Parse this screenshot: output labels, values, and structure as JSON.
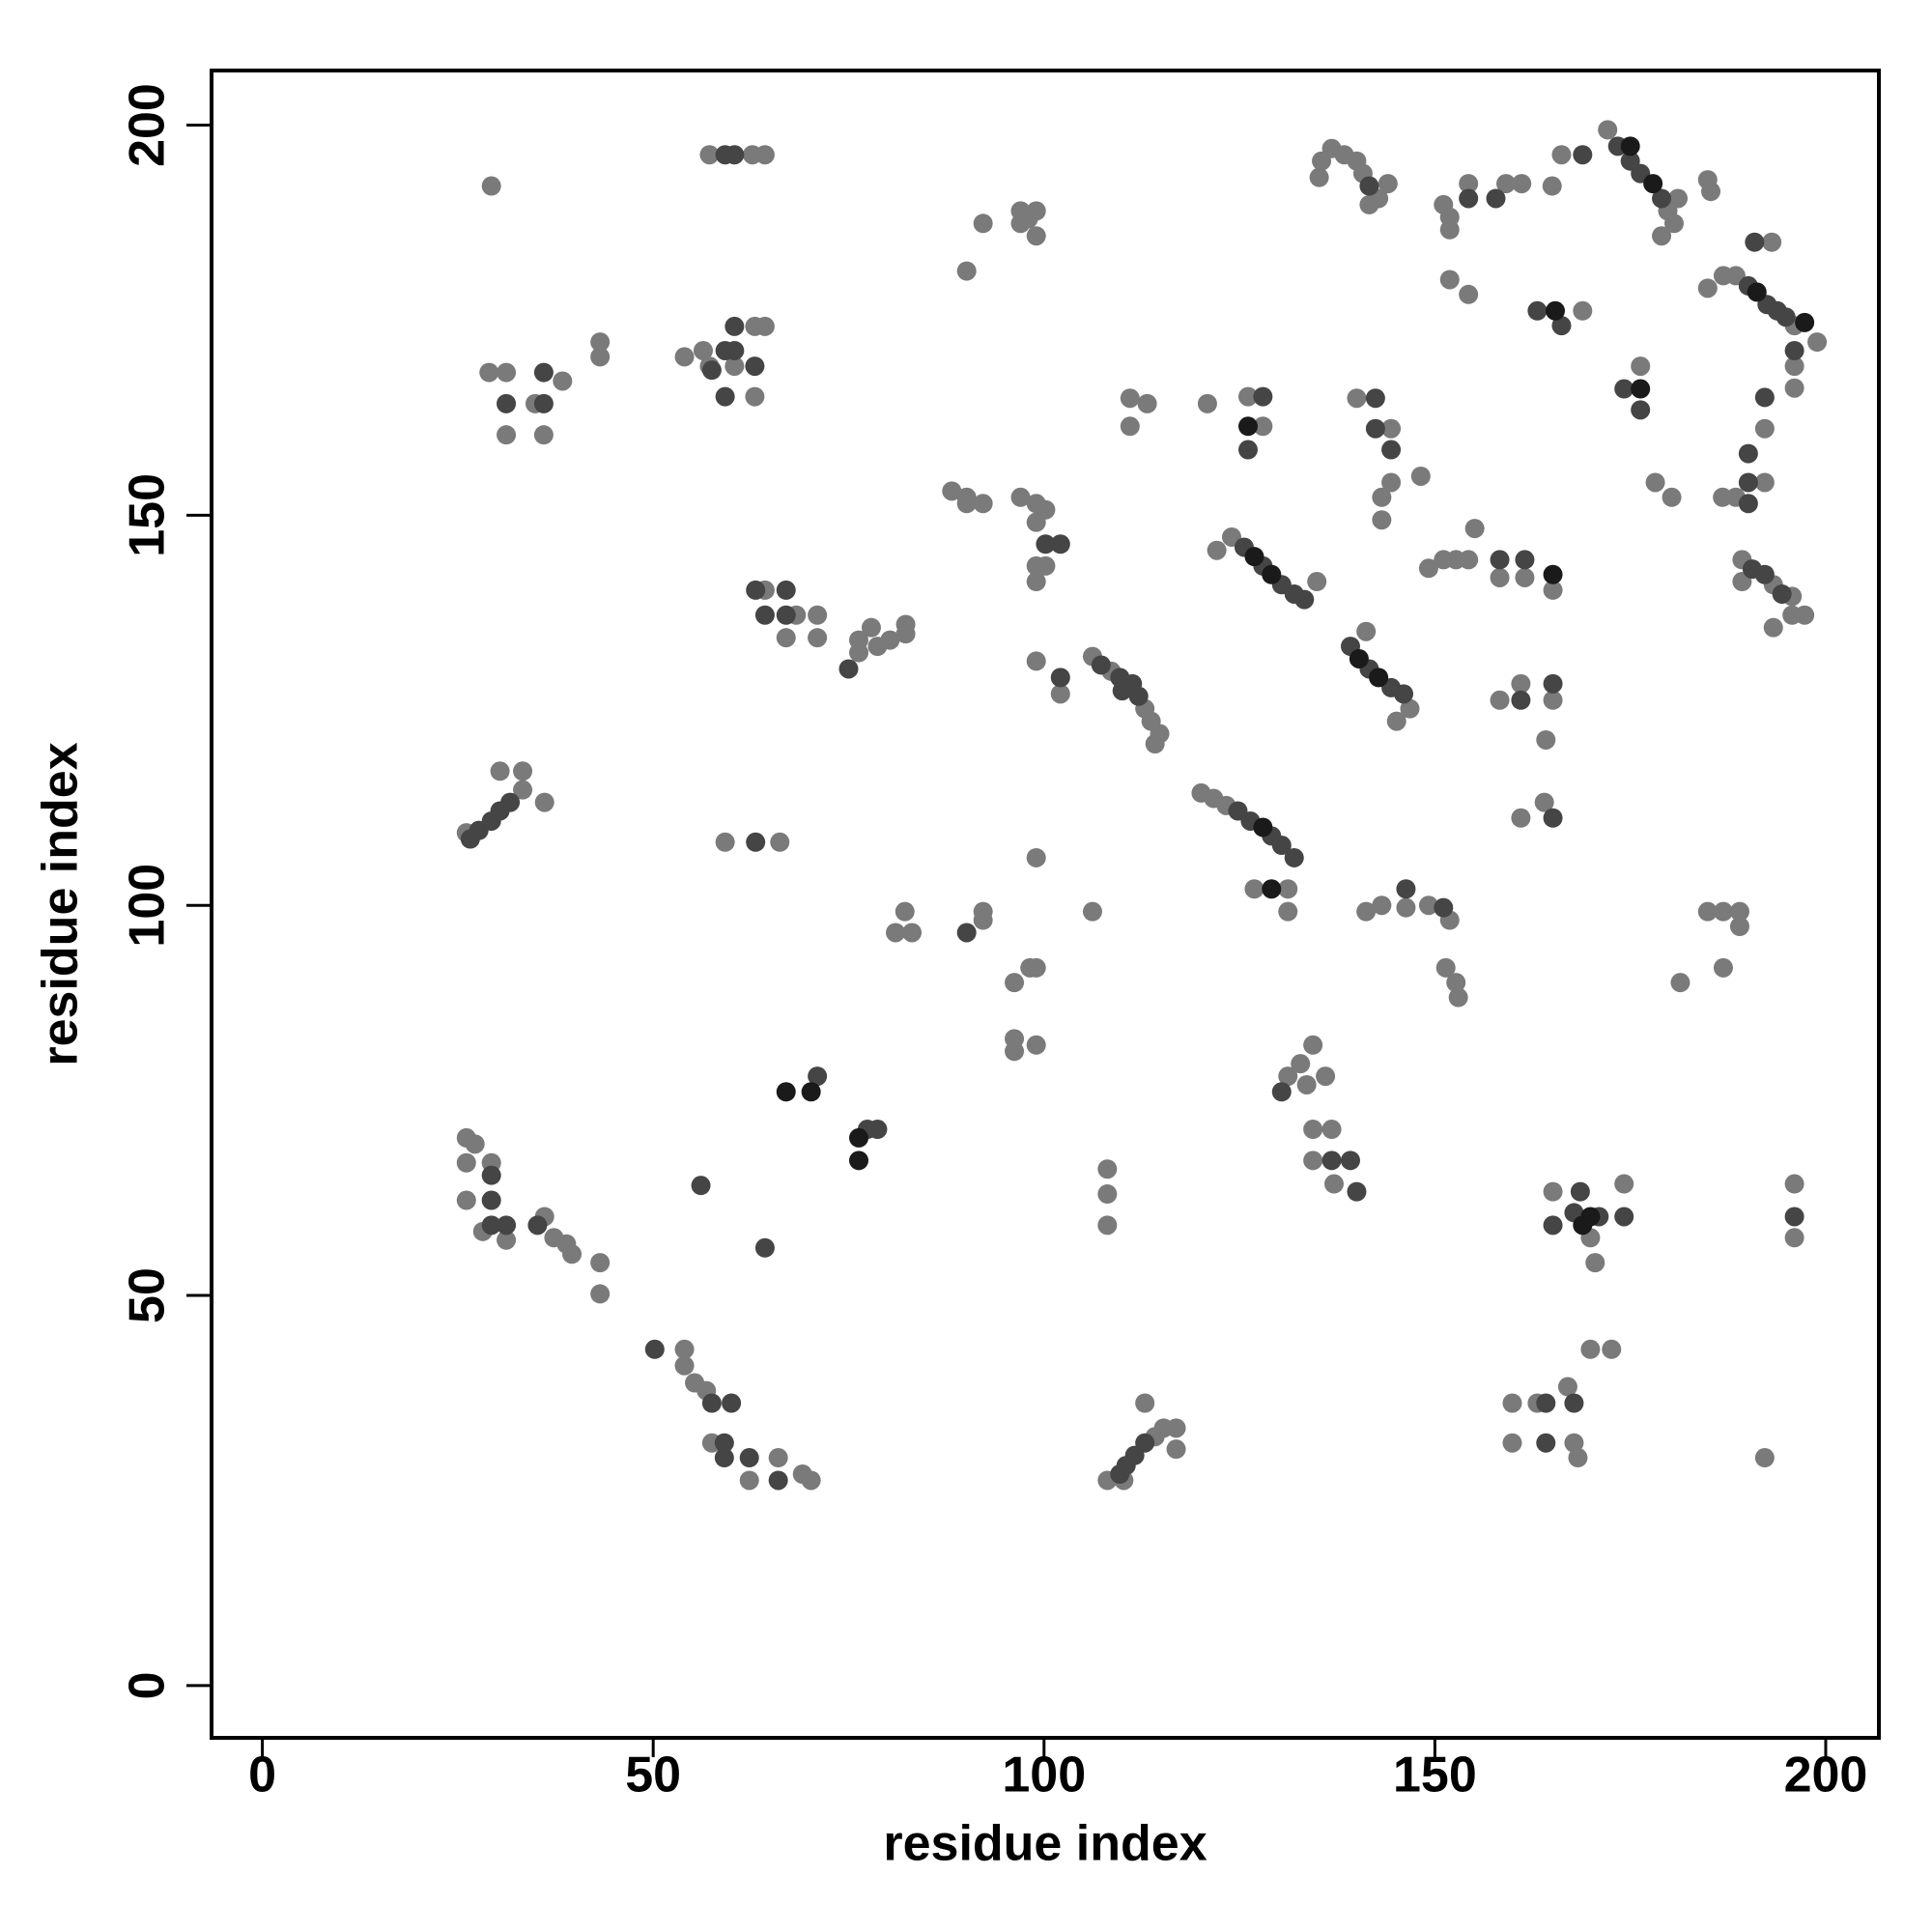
{
  "chart_data": {
    "type": "scatter",
    "xlabel": "residue index",
    "ylabel": "residue index",
    "xlim": [
      -6.5,
      206.8
    ],
    "ylim": [
      -6.7,
      207
    ],
    "xticks": [
      0,
      50,
      100,
      150,
      200
    ],
    "yticks": [
      0,
      50,
      100,
      150,
      200
    ],
    "series": [
      {
        "color": "#7a7a7a",
        "x": [
          29.3,
          57.2,
          62.7,
          64.3,
          29,
          31.2,
          31.2,
          36,
          34.9,
          38.4,
          43.2,
          43.2,
          54,
          56.4,
          57.2,
          60.4,
          63,
          63,
          64.3,
          90.1,
          92.2,
          97,
          99,
          97,
          99,
          98,
          88.2,
          90.1,
          92.2,
          90.1,
          97,
          99,
          100.2,
          99,
          99,
          100.2,
          99,
          106.2,
          108.6,
          111,
          112.9,
          113.7,
          114.8,
          114.2,
          102.1,
          99,
          111,
          111,
          113.2,
          120.9,
          126.1,
          128,
          124,
          134.9,
          122.1,
          135.5,
          136.8,
          138.4,
          140,
          140.8,
          142.8,
          144,
          141.6,
          135.2,
          151.1,
          151.9,
          151.9,
          154.3,
          159.1,
          161.1,
          151.9,
          154.3,
          168.9,
          166.2,
          165,
          172.1,
          179.8,
          180.6,
          179,
          181.1,
          184.9,
          186.9,
          188.5,
          196,
          198.9,
          196,
          196,
          193.1,
          184.9,
          185.3,
          176.3,
          178.2,
          180.3,
          192.2,
          192.2,
          186.8,
          188.5,
          189.3,
          193.3,
          195.7,
          195.7,
          197.3,
          193.3,
          189.3,
          140,
          144.4,
          144.4,
          143.2,
          143.2,
          148.2,
          149.2,
          151.1,
          152.7,
          154.3,
          155.1,
          158.3,
          161.5,
          165.1,
          146.8,
          145.1,
          141.2,
          158.3,
          161,
          165.1,
          164.2,
          164,
          161,
          120.1,
          121.7,
          123.3,
          126.9,
          131.2,
          131.2,
          141.2,
          143.2,
          146.3,
          149.2,
          151.9,
          151.4,
          152.7,
          153,
          184.9,
          186.9,
          189,
          189,
          186.9,
          181.4,
          131.2,
          132.8,
          134.4,
          136,
          133.6,
          134.4,
          136.8,
          134.4,
          137.1,
          165.1,
          169.9,
          170.5,
          174.2,
          196,
          196,
          169.9,
          172.6,
          159.9,
          159.9,
          163.1,
          167,
          167.8,
          168.3,
          192.2,
          108.1,
          110.2,
          114.2,
          115.3,
          116.9,
          116.9,
          112.9,
          54,
          54,
          55.3,
          56.8,
          57.5,
          62.3,
          66,
          69.1,
          70.2,
          26.1,
          27.2,
          26.1,
          29.3,
          26.1,
          28.2,
          31.2,
          36.1,
          37.3,
          38.9,
          39.6,
          43.2,
          43.2,
          33.3,
          33.3,
          30.4,
          36.1,
          26.1,
          59.2,
          66.2,
          64.3,
          68.3,
          67,
          71,
          71,
          76.3,
          76.3,
          77.9,
          78.7,
          80.3,
          82.3,
          82.3,
          81,
          82.2,
          83.1,
          92.2,
          92.2,
          96.2,
          98.2,
          99,
          96.2,
          96.2,
          99,
          99,
          106.2,
          108.1,
          108.1,
          108.1
        ],
        "values": [
          192.2,
          196.2,
          196.2,
          196.2,
          168.3,
          168.3,
          160.3,
          160.3,
          164.3,
          167.2,
          172.2,
          170.3,
          170.3,
          171.1,
          169.1,
          169.1,
          165.2,
          174.2,
          174.2,
          181.3,
          187.4,
          189,
          189,
          187.4,
          185.8,
          188,
          153.1,
          152.3,
          151.5,
          151.5,
          152.3,
          151.5,
          150.7,
          149.1,
          143.5,
          143.5,
          141.5,
          131.9,
          130,
          128.1,
          125.2,
          123.6,
          122,
          120.7,
          127.1,
          131.3,
          165,
          161.4,
          164.3,
          164.3,
          165.2,
          161.4,
          147.2,
          141.5,
          145.5,
          195.4,
          197,
          196.2,
          195.4,
          193.8,
          190.6,
          192.5,
          189.8,
          193.3,
          189.8,
          188.2,
          186.6,
          192.5,
          192.5,
          192.5,
          180.2,
          178.3,
          176.2,
          196.2,
          192.2,
          199.4,
          189,
          187.4,
          185.8,
          190.6,
          179.1,
          180.7,
          180.7,
          174.3,
          172.2,
          169.1,
          166.3,
          185,
          193,
          191.5,
          169.1,
          154.2,
          152.3,
          161.1,
          154.2,
          152.3,
          152.3,
          144.3,
          141.1,
          139.6,
          137.2,
          137.2,
          135.6,
          141.5,
          165,
          161.1,
          154.2,
          152.3,
          149.4,
          155,
          143.2,
          144.3,
          144.3,
          144.3,
          148.3,
          142,
          142,
          140.4,
          125.2,
          123.6,
          135.1,
          126.3,
          128.4,
          126.3,
          121.2,
          113.2,
          111.2,
          114.4,
          113.7,
          112.8,
          102.1,
          102.1,
          99.2,
          99.2,
          100,
          99.7,
          100,
          98.1,
          92,
          90.1,
          88.2,
          99.2,
          99.2,
          99.2,
          97.3,
          92,
          90.1,
          78.1,
          79.7,
          82.1,
          78.1,
          77,
          71.3,
          71.3,
          67.3,
          64.3,
          63.3,
          57.4,
          54.2,
          64.3,
          64.3,
          57.4,
          43.1,
          43.1,
          36.2,
          31.1,
          36.2,
          38.3,
          31.1,
          29.2,
          29.2,
          26.3,
          26.3,
          31.9,
          33,
          33,
          30.3,
          36.2,
          43.1,
          41,
          38.8,
          37.8,
          31.1,
          26.3,
          29.2,
          27.1,
          26.3,
          70.2,
          69.4,
          67,
          67,
          62.2,
          58.2,
          57.1,
          60.1,
          57.4,
          56.6,
          55.3,
          54.2,
          50.2,
          114.8,
          117.2,
          117.2,
          113.2,
          109.3,
          108.1,
          108.1,
          140.4,
          137.2,
          134.3,
          137.2,
          134.3,
          134,
          132.4,
          135.6,
          133.2,
          134,
          134.8,
          136,
          96.5,
          99.2,
          96.5,
          98.1,
          99.2,
          90.1,
          92,
          92,
          82.9,
          81.3,
          82.1,
          106.1,
          99.2,
          66.2,
          63,
          59
        ]
      },
      {
        "color": "#454545",
        "x": [
          59.2,
          60.4,
          31.2,
          36,
          36,
          59.2,
          60.4,
          60.4,
          59.2,
          63,
          57.5,
          100.2,
          102.1,
          107.3,
          109.7,
          111.3,
          102.1,
          128,
          126.1,
          125.6,
          128,
          130.4,
          132,
          133.3,
          141.6,
          154.3,
          157.8,
          163.1,
          166.2,
          168.9,
          173.4,
          175,
          176.3,
          179,
          190.1,
          192.5,
          193.8,
          194.9,
          196,
          190.9,
          174.2,
          176.3,
          192.2,
          190.1,
          190.1,
          190.1,
          190.6,
          192.2,
          194.4,
          142.4,
          142.4,
          144.4,
          158.3,
          161.5,
          139.2,
          141.6,
          144.4,
          146,
          161,
          165.1,
          165.1,
          124.8,
          126.4,
          129.1,
          130.4,
          132,
          146.3,
          151.1,
          130.4,
          136.8,
          139.2,
          140,
          165.1,
          168.6,
          167.8,
          171,
          174.2,
          196,
          164.2,
          164.2,
          167.8,
          109.7,
          110.5,
          111.6,
          112.9,
          50.2,
          57.5,
          60,
          59.1,
          59.1,
          62.3,
          66,
          29.3,
          29.3,
          29.3,
          31.2,
          35.2,
          26.6,
          27.7,
          29.3,
          30.4,
          31.7,
          63.1,
          56.1,
          64.3,
          63.1,
          67,
          67,
          64.3,
          75,
          90.1,
          71,
          77.4,
          78.7,
          112.1,
          110
        ],
        "values": [
          196.2,
          196.2,
          164.3,
          168.3,
          164.3,
          171.1,
          174.2,
          171.1,
          165.2,
          169.1,
          168.6,
          146.3,
          146.3,
          130.8,
          129.2,
          128.4,
          129.2,
          165.2,
          158.4,
          145.9,
          143.5,
          141.1,
          139.9,
          139.2,
          192.2,
          190.6,
          190.6,
          176.2,
          174.3,
          196.2,
          197.3,
          195.4,
          193.8,
          190.6,
          179.4,
          177,
          176.2,
          175.4,
          171.1,
          185,
          166.2,
          163.5,
          165.1,
          157.9,
          154.2,
          151.5,
          143.1,
          142.4,
          139.9,
          165,
          161.1,
          158.4,
          144.3,
          144.3,
          133.2,
          130.3,
          127.9,
          127.1,
          126.3,
          128.4,
          111.2,
          112.1,
          110.8,
          108.9,
          107.7,
          106.1,
          102.1,
          99.7,
          76.1,
          67.3,
          67.3,
          63.3,
          59,
          63.3,
          60.6,
          60.1,
          60.1,
          60.1,
          36.2,
          31.1,
          36.2,
          27.1,
          28.2,
          29.5,
          31.1,
          43.1,
          36.2,
          36.2,
          29.2,
          31.1,
          29.2,
          26.3,
          65.4,
          62.2,
          59,
          59,
          59,
          108.5,
          109.6,
          110.8,
          112.1,
          113.2,
          108.1,
          64.1,
          56.1,
          140.4,
          140.4,
          137.2,
          137.2,
          130.3,
          96.5,
          78.1,
          71.3,
          71.3,
          126.8,
          127.5
        ]
      },
      {
        "color": "#1a1a1a",
        "x": [
          126.1,
          126.9,
          129.1,
          140.3,
          142.8,
          128,
          129.1,
          165.1,
          175,
          177.9,
          191.2,
          197.3,
          165.4,
          176.3,
          168.9,
          169.9,
          67,
          70.2,
          76.3,
          76.3
        ],
        "values": [
          161.4,
          144.7,
          142.4,
          131.6,
          129.2,
          110,
          102.1,
          142.4,
          197.3,
          192.5,
          178.6,
          174.7,
          176.2,
          166.2,
          59,
          60.1,
          76.1,
          76.1,
          70.2,
          67.3
        ]
      }
    ]
  }
}
